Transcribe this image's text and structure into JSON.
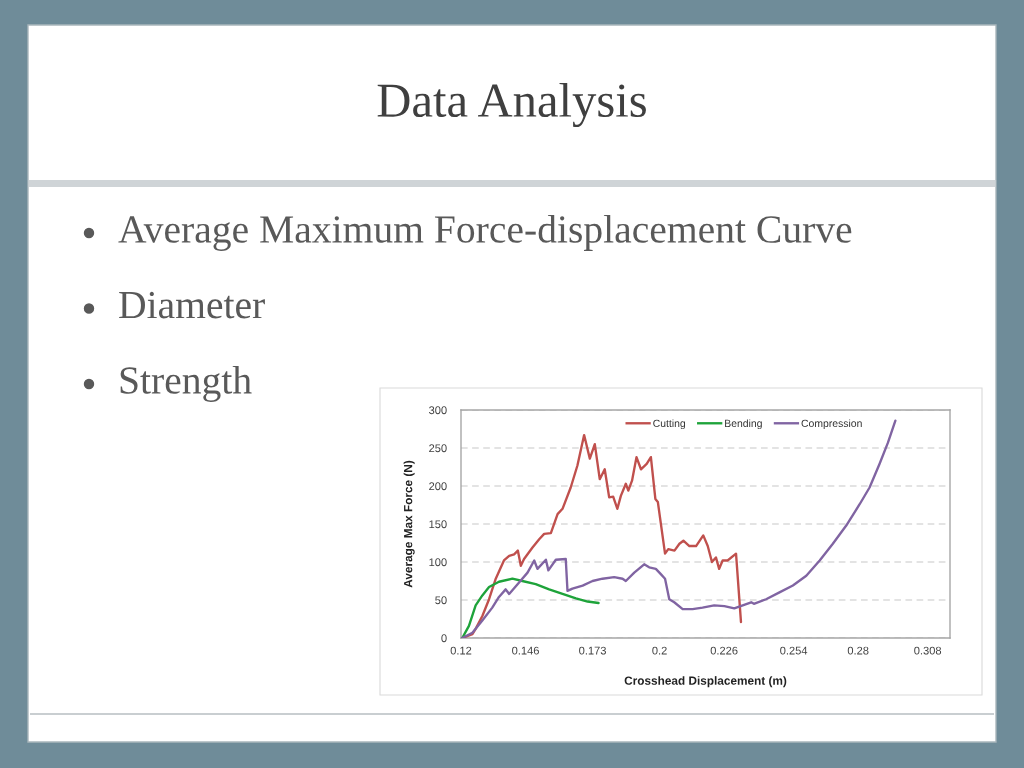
{
  "chart_data": {
    "type": "line",
    "title": "Data Analysis",
    "annotations": [
      "Average Maximum Force-displacement Curve",
      "Diameter",
      "Strength"
    ],
    "xlabel": "Crosshead Displacement (m)",
    "ylabel": "Average Max Force (N)",
    "xlim": [
      0.12,
      0.317
    ],
    "xticks": [
      0.12,
      0.146,
      0.173,
      0.2,
      0.226,
      0.254,
      0.28,
      0.308
    ],
    "ylim": [
      0,
      300
    ],
    "yticks": [
      0,
      50,
      100,
      150,
      200,
      250,
      300
    ],
    "grid": "y",
    "legend": "top right",
    "series": [
      {
        "name": "Cutting",
        "color": "#c0504d",
        "x": [
          0.1205,
          0.1246,
          0.1259,
          0.1286,
          0.1313,
          0.134,
          0.1373,
          0.1394,
          0.1414,
          0.1429,
          0.1441,
          0.1454,
          0.1488,
          0.1515,
          0.1535,
          0.1562,
          0.1589,
          0.1609,
          0.1642,
          0.1669,
          0.1696,
          0.1719,
          0.1739,
          0.1759,
          0.1779,
          0.1797,
          0.1813,
          0.183,
          0.1844,
          0.1864,
          0.1874,
          0.1889,
          0.1907,
          0.1925,
          0.1948,
          0.1965,
          0.1983,
          0.1993,
          0.2022,
          0.2035,
          0.206,
          0.208,
          0.2096,
          0.212,
          0.2147,
          0.2176,
          0.2194,
          0.2211,
          0.2227,
          0.224,
          0.2254,
          0.2274,
          0.2308,
          0.2328
        ],
        "values": [
          0,
          5,
          12,
          29,
          51,
          78,
          102,
          108,
          110,
          115,
          95,
          104,
          119,
          130,
          137,
          138,
          163,
          170,
          198,
          227,
          267,
          236,
          255,
          209,
          222,
          185,
          186,
          170,
          187,
          203,
          194,
          207,
          238,
          222,
          229,
          238,
          183,
          179,
          111,
          117,
          115,
          124,
          128,
          121,
          121,
          135,
          121,
          100,
          106,
          91,
          102,
          102,
          111,
          21
        ]
      },
      {
        "name": "Bending",
        "color": "#1ea33a",
        "x": [
          0.1205,
          0.1232,
          0.1259,
          0.1286,
          0.1313,
          0.1353,
          0.1407,
          0.1447,
          0.1501,
          0.1555,
          0.1609,
          0.1663,
          0.171,
          0.1754
        ],
        "values": [
          0,
          16,
          43,
          56,
          67,
          74,
          78,
          75,
          71,
          64,
          58,
          52,
          48,
          46
        ]
      },
      {
        "name": "Compression",
        "color": "#8064a2",
        "x": [
          0.1205,
          0.1246,
          0.1286,
          0.1326,
          0.1353,
          0.138,
          0.1394,
          0.1434,
          0.1468,
          0.1495,
          0.1508,
          0.1542,
          0.1552,
          0.1582,
          0.1622,
          0.1629,
          0.1649,
          0.169,
          0.173,
          0.177,
          0.1817,
          0.1851,
          0.1864,
          0.1898,
          0.1938,
          0.1958,
          0.1985,
          0.2005,
          0.2022,
          0.2039,
          0.2059,
          0.2093,
          0.2133,
          0.2173,
          0.222,
          0.2261,
          0.2301,
          0.2335,
          0.2369,
          0.238,
          0.2429,
          0.2483,
          0.2537,
          0.2591,
          0.2645,
          0.2698,
          0.2752,
          0.2806,
          0.2846,
          0.2886,
          0.292,
          0.295
        ],
        "values": [
          0,
          7,
          23,
          40,
          54,
          64,
          58,
          73,
          86,
          102,
          91,
          103,
          89,
          103,
          104,
          62,
          65,
          69,
          75,
          78,
          80,
          78,
          75,
          86,
          97,
          93,
          91,
          84,
          78,
          51,
          47,
          38,
          38,
          40,
          43,
          42,
          39,
          43,
          47,
          45,
          51,
          60,
          69,
          82,
          102,
          124,
          148,
          176,
          198,
          229,
          257,
          286
        ]
      }
    ]
  }
}
